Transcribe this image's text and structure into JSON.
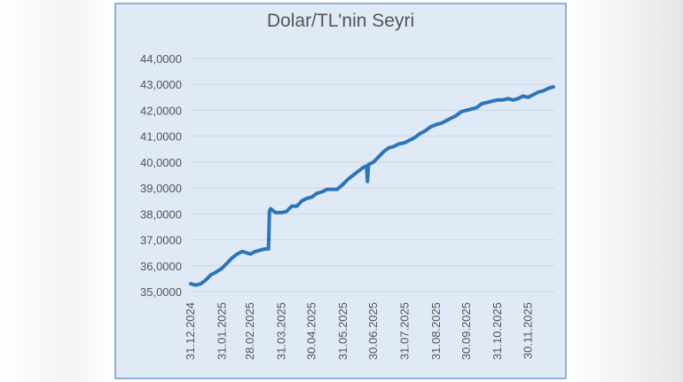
{
  "chart_data": {
    "type": "line",
    "title": "Dolar/TL'nin Seyri",
    "xlabel": "",
    "ylabel": "",
    "ylim": [
      35.0,
      44.0
    ],
    "y_ticks": [
      "35,0000",
      "36,0000",
      "37,0000",
      "38,0000",
      "39,0000",
      "40,0000",
      "41,0000",
      "42,0000",
      "43,0000",
      "44,0000"
    ],
    "x_ticks": [
      "31.12.2024",
      "31.01.2025",
      "28.02.2025",
      "31.03.2025",
      "30.04.2025",
      "31.05.2025",
      "30.06.2025",
      "31.07.2025",
      "31.08.2025",
      "30.09.2025",
      "31.10.2025",
      "30.11.2025"
    ],
    "grid": true,
    "line_color": "#2e75b6",
    "series": [
      {
        "x": [
          "31.12.2024",
          "05.01.2025",
          "10.01.2025",
          "15.01.2025",
          "20.01.2025",
          "25.01.2025",
          "31.01.2025",
          "05.02.2025",
          "10.02.2025",
          "15.02.2025",
          "20.02.2025",
          "28.02.2025",
          "05.03.2025",
          "10.03.2025",
          "15.03.2025",
          "18.03.2025",
          "19.03.2025",
          "20.03.2025",
          "25.03.2025",
          "31.03.2025",
          "05.04.2025",
          "10.04.2025",
          "15.04.2025",
          "20.04.2025",
          "25.04.2025",
          "30.04.2025",
          "05.05.2025",
          "10.05.2025",
          "15.05.2025",
          "20.05.2025",
          "25.05.2025",
          "31.05.2025",
          "05.06.2025",
          "10.06.2025",
          "15.06.2025",
          "20.06.2025",
          "23.06.2025",
          "24.06.2025",
          "25.06.2025",
          "30.06.2025",
          "05.07.2025",
          "10.07.2025",
          "15.07.2025",
          "20.07.2025",
          "25.07.2025",
          "31.07.2025",
          "05.08.2025",
          "10.08.2025",
          "15.08.2025",
          "20.08.2025",
          "25.08.2025",
          "31.08.2025",
          "05.09.2025",
          "10.09.2025",
          "15.09.2025",
          "20.09.2025",
          "25.09.2025",
          "30.09.2025",
          "05.10.2025",
          "10.10.2025",
          "15.10.2025",
          "20.10.2025",
          "25.10.2025",
          "31.10.2025",
          "05.11.2025",
          "10.11.2025",
          "15.11.2025",
          "20.11.2025",
          "25.11.2025",
          "30.11.2025",
          "05.12.2025",
          "10.12.2025",
          "15.12.2025",
          "20.12.2025",
          "25.12.2025"
        ],
        "values": [
          35.3,
          35.25,
          35.3,
          35.45,
          35.65,
          35.75,
          35.9,
          36.1,
          36.3,
          36.45,
          36.55,
          36.45,
          36.55,
          36.6,
          36.65,
          36.65,
          38.1,
          38.2,
          38.05,
          38.05,
          38.1,
          38.3,
          38.3,
          38.5,
          38.6,
          38.65,
          38.8,
          38.85,
          38.95,
          38.95,
          38.95,
          39.15,
          39.35,
          39.5,
          39.65,
          39.8,
          39.85,
          39.25,
          39.9,
          40.0,
          40.2,
          40.4,
          40.55,
          40.6,
          40.7,
          40.75,
          40.85,
          40.95,
          41.1,
          41.2,
          41.35,
          41.45,
          41.5,
          41.6,
          41.7,
          41.8,
          41.95,
          42.0,
          42.05,
          42.1,
          42.25,
          42.3,
          42.35,
          42.4,
          42.4,
          42.45,
          42.4,
          42.45,
          42.55,
          42.5,
          42.6,
          42.7,
          42.75,
          42.85,
          42.9
        ]
      }
    ]
  }
}
